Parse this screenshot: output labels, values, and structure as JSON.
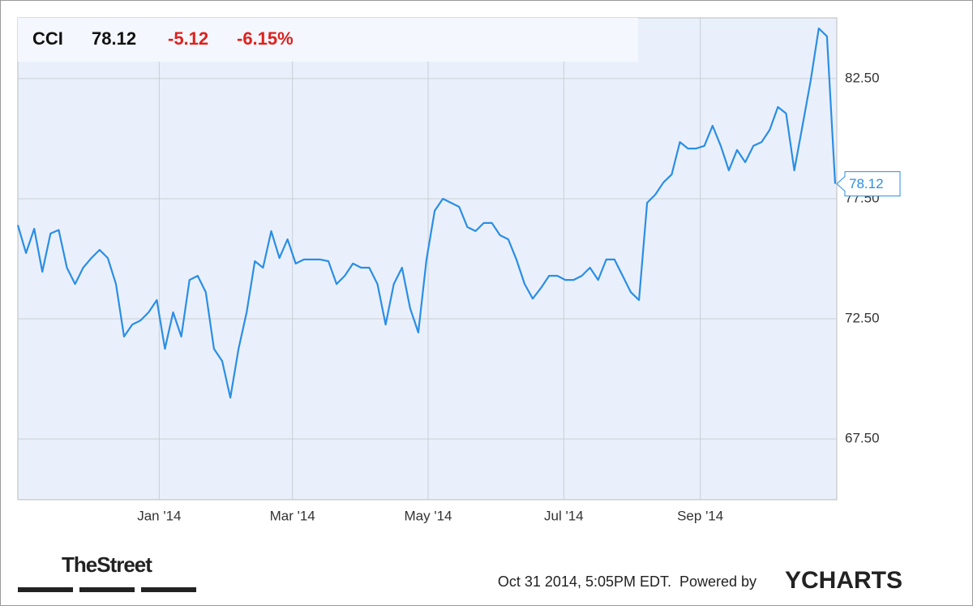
{
  "chart_data": {
    "type": "line",
    "ticker": "CCI",
    "price": 78.12,
    "change": "-5.12",
    "change_pct": "-6.15%",
    "color": "#2a8ee6",
    "grid": true,
    "values": [
      76.4,
      75.24,
      76.25,
      74.46,
      76.05,
      76.2,
      74.63,
      73.95,
      74.63,
      75.03,
      75.37,
      75.03,
      73.95,
      71.76,
      72.26,
      72.43,
      72.77,
      73.28,
      71.25,
      72.77,
      71.76,
      74.12,
      74.29,
      73.61,
      71.25,
      70.74,
      69.22,
      71.25,
      72.77,
      74.9,
      74.63,
      76.15,
      75.03,
      75.81,
      74.8,
      74.97,
      74.97,
      74.97,
      74.9,
      73.95,
      74.29,
      74.8,
      74.63,
      74.63,
      73.95,
      72.26,
      73.95,
      74.63,
      72.94,
      71.93,
      74.97,
      77.0,
      77.5,
      77.33,
      77.16,
      76.32,
      76.15,
      76.49,
      76.49,
      75.98,
      75.81,
      74.97,
      73.95,
      73.34,
      73.78,
      74.29,
      74.29,
      74.12,
      74.12,
      74.29,
      74.63,
      74.12,
      74.97,
      74.97,
      74.29,
      73.61,
      73.28,
      77.33,
      77.67,
      78.18,
      78.51,
      79.86,
      79.59,
      79.59,
      79.7,
      80.54,
      79.7,
      78.68,
      79.53,
      79.02,
      79.7,
      79.86,
      80.37,
      81.32,
      81.05,
      78.68,
      80.54,
      82.4,
      84.59,
      84.26,
      78.12
    ],
    "xlim": [
      0,
      100.2
    ],
    "xticks": [
      {
        "value": 17.3,
        "label": "Jan '14"
      },
      {
        "value": 33.6,
        "label": "Mar '14"
      },
      {
        "value": 50.2,
        "label": "May '14"
      },
      {
        "value": 66.8,
        "label": "Jul '14"
      },
      {
        "value": 83.5,
        "label": "Sep '14"
      }
    ],
    "ylim": [
      64.97,
      85.03
    ],
    "yticks": [
      {
        "value": 67.5,
        "label": "67.50"
      },
      {
        "value": 72.5,
        "label": "72.50"
      },
      {
        "value": 77.5,
        "label": "77.50"
      },
      {
        "value": 82.5,
        "label": "82.50"
      }
    ]
  },
  "footer": {
    "source": "TheStreet",
    "timestamp": "Oct 31 2014, 5:05PM EDT.",
    "powered_by": "Powered by",
    "brand": "YCHARTS"
  }
}
